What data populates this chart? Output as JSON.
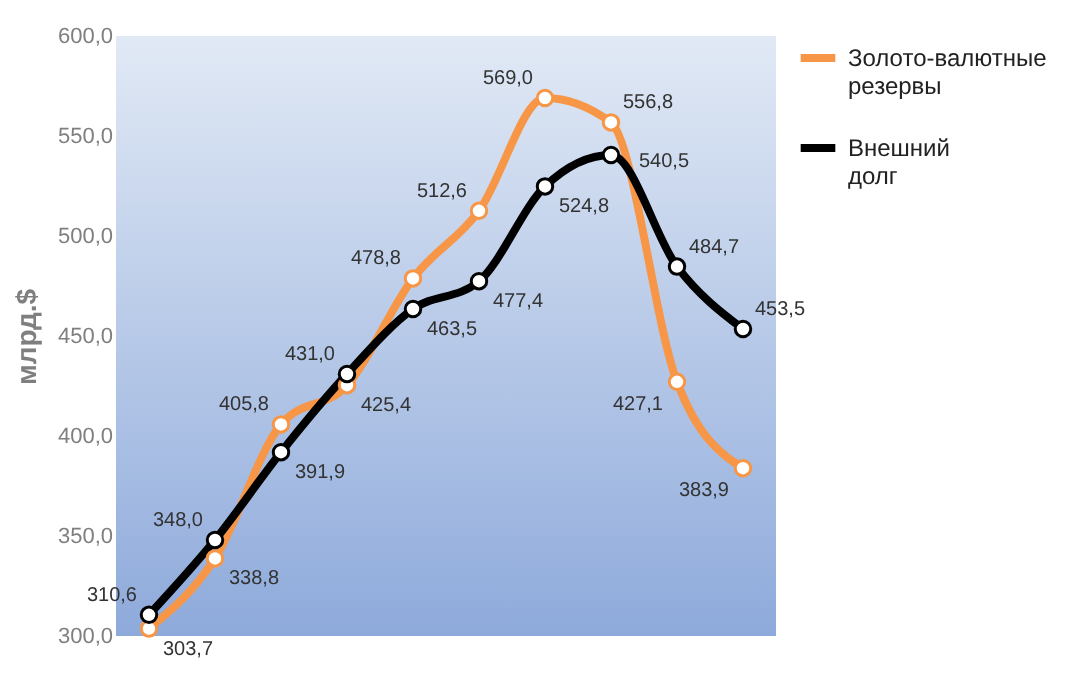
{
  "chart_data": {
    "type": "line",
    "ylabel": "млрд.$",
    "categories": [
      null,
      null,
      null,
      null,
      null,
      null,
      null,
      null,
      null,
      null
    ],
    "series": [
      {
        "name": "Золото-валютные резервы",
        "color": "#f79646",
        "values": [
          303.7,
          338.8,
          405.8,
          425.4,
          478.8,
          512.6,
          569.0,
          556.8,
          427.1,
          383.9
        ],
        "value_labels": [
          "303,7",
          "338,8",
          "405,8",
          "425,4",
          "478,8",
          "512,6",
          "569,0",
          "556,8",
          "427,1",
          "383,9"
        ]
      },
      {
        "name": "Внешний долг",
        "color": "#000000",
        "values": [
          310.6,
          348.0,
          391.9,
          431.0,
          463.5,
          477.4,
          524.8,
          540.5,
          484.7,
          453.5
        ],
        "value_labels": [
          "310,6",
          "348,0",
          "391,9",
          "431,0",
          "463,5",
          "477,4",
          "524,8",
          "540,5",
          "484,7",
          "453,5"
        ]
      }
    ],
    "ylim": [
      300,
      600
    ],
    "yticks": [
      {
        "value": 300,
        "label": "300,0"
      },
      {
        "value": 350,
        "label": "350,0"
      },
      {
        "value": 400,
        "label": "400,0"
      },
      {
        "value": 450,
        "label": "450,0"
      },
      {
        "value": 500,
        "label": "500,0"
      },
      {
        "value": 550,
        "label": "550,0"
      },
      {
        "value": 600,
        "label": "600,0"
      }
    ],
    "legend": "right",
    "marker": "circle",
    "line_style": "solid",
    "tick_labels": "y",
    "grid": false
  }
}
